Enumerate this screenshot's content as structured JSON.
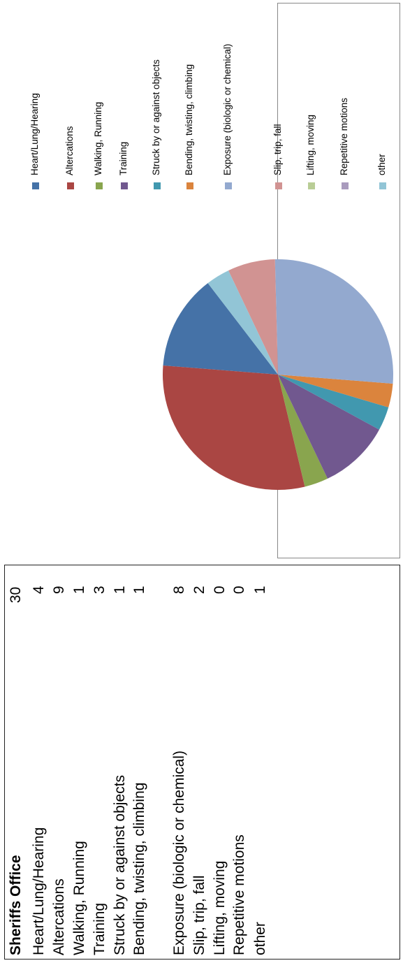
{
  "table": {
    "title": "Sheriffs Office",
    "total": "30",
    "rows": [
      {
        "label": "Heart/Lung/Hearing",
        "value": "4"
      },
      {
        "label": "Altercations",
        "value": "9"
      },
      {
        "label": "Walking, Running",
        "value": "1"
      },
      {
        "label": "Training",
        "value": "3"
      },
      {
        "label": "Struck by or against objects",
        "value": "1"
      },
      {
        "label": "Bending, twisting, climbing",
        "value": "1"
      },
      {
        "label": "Exposure (biologic or chemical)",
        "value": "8"
      },
      {
        "label": "Slip, trip, fall",
        "value": "2"
      },
      {
        "label": "Lifting, moving",
        "value": "0"
      },
      {
        "label": "Repetitive motions",
        "value": "0"
      },
      {
        "label": "other",
        "value": "1"
      }
    ]
  },
  "chart_data": {
    "type": "pie",
    "title": "",
    "legend_position": "right",
    "categories": [
      "Heart/Lung/Hearing",
      "Altercations",
      "Walking, Running",
      "Training",
      "Struck by or against objects",
      "Bending, twisting, climbing",
      "Exposure (biologic or chemical)",
      "Slip, trip, fall",
      "Lifting, moving",
      "Repetitive motions",
      "other"
    ],
    "values": [
      4,
      9,
      1,
      3,
      1,
      1,
      8,
      2,
      0,
      0,
      1
    ],
    "colors": [
      "#4572A7",
      "#AA4643",
      "#89A54E",
      "#71588F",
      "#4198AF",
      "#DB843D",
      "#93A9CF",
      "#D19392",
      "#B9CD96",
      "#A99BBD",
      "#92C5D6"
    ]
  }
}
